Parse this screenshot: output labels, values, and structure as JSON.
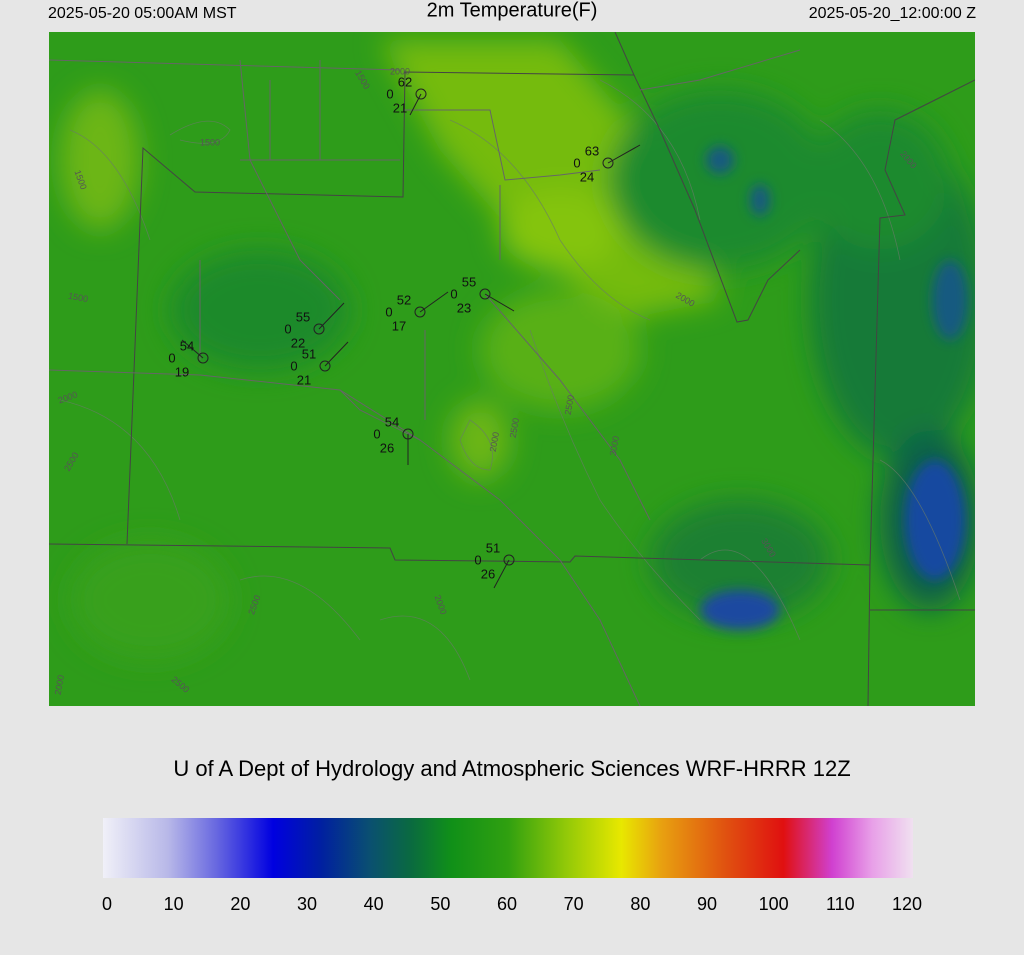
{
  "header": {
    "valid_time": "2025-05-20 05:00AM MST",
    "title": "2m Temperature(F)",
    "init_time": "2025-05-20_12:00:00 Z"
  },
  "footer": "U of A Dept of Hydrology and Atmospheric Sciences WRF-HRRR 12Z",
  "colorbar": {
    "range": [
      0,
      120
    ],
    "ticks": [
      0,
      10,
      20,
      30,
      40,
      50,
      60,
      70,
      80,
      90,
      100,
      110,
      120
    ]
  },
  "stations": [
    {
      "temperature": 62,
      "code": 0,
      "dewpoint": 21
    },
    {
      "temperature": 63,
      "code": 0,
      "dewpoint": 24
    },
    {
      "temperature": 55,
      "code": 0,
      "dewpoint": 23
    },
    {
      "temperature": 52,
      "code": 0,
      "dewpoint": 17
    },
    {
      "temperature": 55,
      "code": 0,
      "dewpoint": 22
    },
    {
      "temperature": 51,
      "code": 0,
      "dewpoint": 21
    },
    {
      "temperature": 54,
      "code": 0,
      "dewpoint": 19
    },
    {
      "temperature": 54,
      "code": 0,
      "dewpoint": 26
    },
    {
      "temperature": 51,
      "code": 0,
      "dewpoint": 26
    }
  ],
  "contour_labels": [
    1500,
    1500,
    1500,
    2000,
    1500,
    2000,
    2000,
    2500,
    2000,
    2500,
    3000,
    2500,
    2000,
    2500,
    2000,
    3000,
    2000,
    2500
  ]
}
